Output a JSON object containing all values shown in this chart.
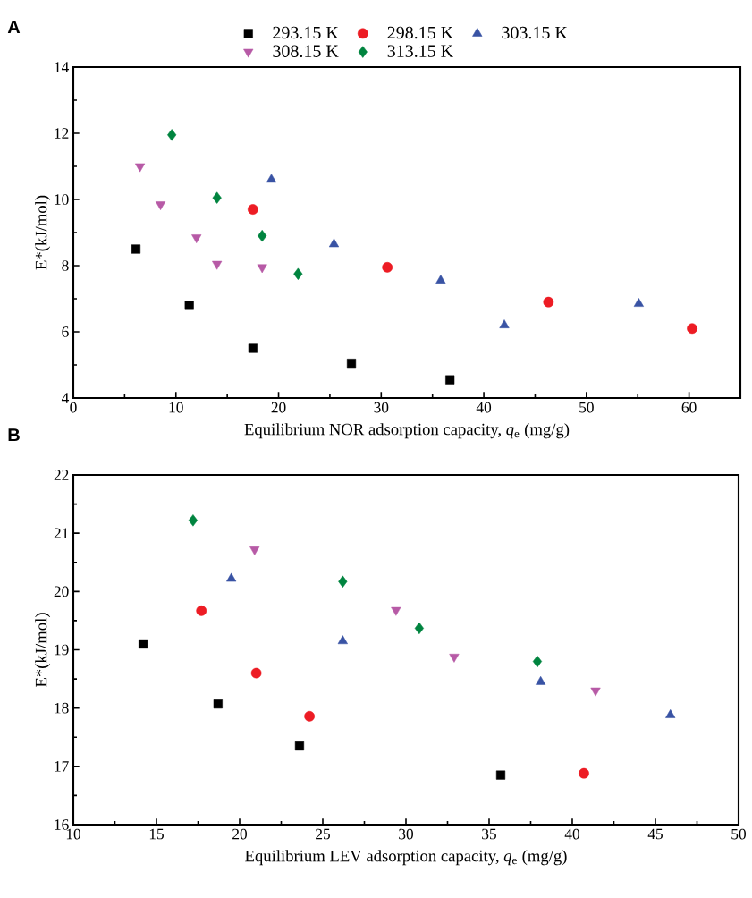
{
  "chart_data": [
    {
      "type": "scatter",
      "xlabel": "Equilibrium NOR adsorption capacity, *q*$_{e}$ (mg/g)",
      "ylabel": "E*(kJ/mol)",
      "annotations": [
        "A"
      ],
      "xlim": [
        0,
        65
      ],
      "ylim": [
        4,
        14
      ],
      "xticks": [
        0,
        10,
        20,
        30,
        40,
        50,
        60
      ],
      "yticks": [
        4,
        6,
        8,
        10,
        12,
        14
      ],
      "legend": "top",
      "grid": false,
      "series": [
        {
          "name": "293.15 K",
          "color": "#000000",
          "marker": "square",
          "x": [
            6.1,
            11.3,
            17.5,
            27.1,
            36.7
          ],
          "values": [
            8.5,
            6.8,
            5.5,
            5.05,
            4.55
          ]
        },
        {
          "name": "298.15 K",
          "color": "#ed1c24",
          "marker": "circle",
          "x": [
            17.5,
            30.6,
            46.3,
            60.3
          ],
          "values": [
            9.7,
            7.95,
            6.9,
            6.1
          ]
        },
        {
          "name": "303.15 K",
          "color": "#3953a4",
          "marker": "triangle",
          "x": [
            19.3,
            25.4,
            35.8,
            42.0,
            55.1
          ],
          "values": [
            10.6,
            8.65,
            7.55,
            6.2,
            6.85
          ]
        },
        {
          "name": "308.15 K",
          "color": "#b75aa6",
          "marker": "triangle-down",
          "x": [
            6.5,
            8.5,
            12.0,
            14.0,
            18.4
          ],
          "values": [
            11.0,
            9.85,
            8.85,
            8.05,
            7.95
          ]
        },
        {
          "name": "313.15 K",
          "color": "#00843f",
          "marker": "diamond",
          "x": [
            9.6,
            14.0,
            18.4,
            21.9
          ],
          "values": [
            11.95,
            10.05,
            8.9,
            7.75
          ]
        }
      ]
    },
    {
      "type": "scatter",
      "xlabel": "Equilibrium LEV adsorption capacity, *q*$_{e}$ (mg/g)",
      "ylabel": "E*(kJ/mol)",
      "annotations": [
        "B"
      ],
      "xlim": [
        10,
        50
      ],
      "ylim": [
        16,
        22
      ],
      "xticks": [
        10,
        15,
        20,
        25,
        30,
        35,
        40,
        45,
        50
      ],
      "yticks": [
        16,
        17,
        18,
        19,
        20,
        21,
        22
      ],
      "grid": false,
      "series": [
        {
          "color": "#000000",
          "marker": "square",
          "x": [
            14.2,
            18.7,
            23.6,
            35.7
          ],
          "values": [
            19.1,
            18.07,
            17.35,
            16.85
          ]
        },
        {
          "color": "#ed1c24",
          "marker": "circle",
          "x": [
            17.7,
            21.0,
            24.2,
            40.7
          ],
          "values": [
            19.67,
            18.6,
            17.86,
            16.88
          ]
        },
        {
          "color": "#3953a4",
          "marker": "triangle",
          "x": [
            19.5,
            26.2,
            38.1,
            45.9
          ],
          "values": [
            20.22,
            19.15,
            18.45,
            17.88
          ]
        },
        {
          "color": "#b75aa6",
          "marker": "triangle-down",
          "x": [
            20.9,
            29.4,
            32.9,
            41.4
          ],
          "values": [
            20.72,
            19.68,
            18.88,
            18.3
          ]
        },
        {
          "color": "#00843f",
          "marker": "diamond",
          "x": [
            17.2,
            26.2,
            30.8,
            37.9
          ],
          "values": [
            21.22,
            20.17,
            19.37,
            18.8
          ]
        }
      ]
    }
  ]
}
